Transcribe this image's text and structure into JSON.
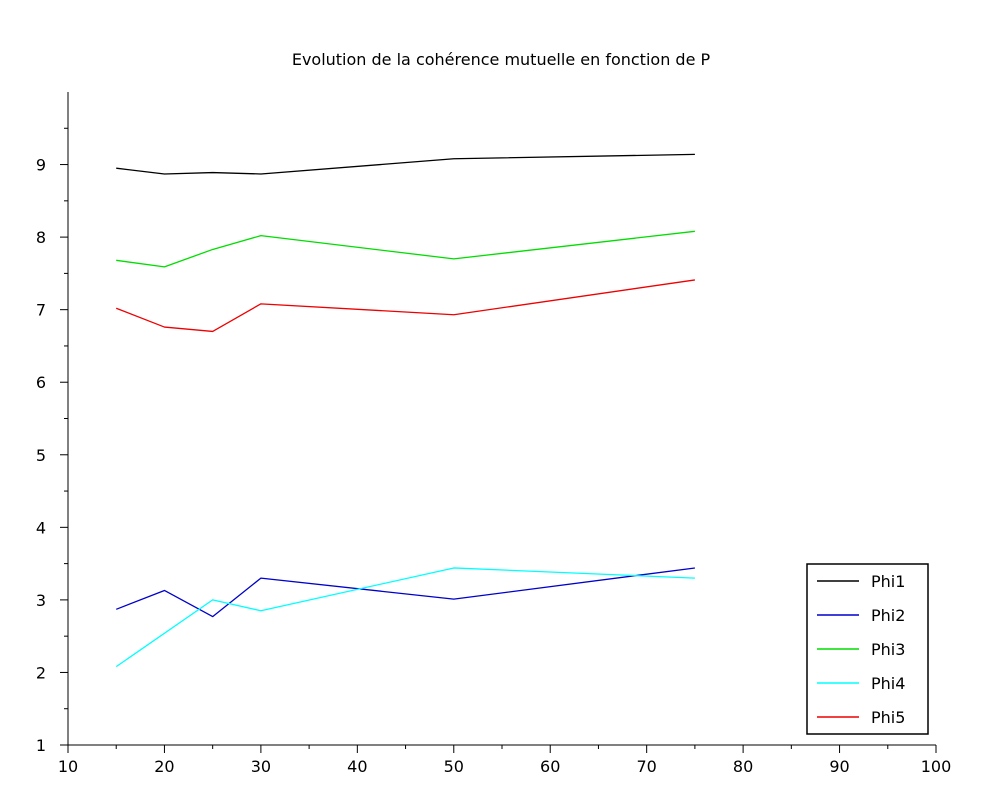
{
  "chart_data": {
    "type": "line",
    "title": "Evolution de la cohérence mutuelle en fonction de P",
    "xlabel": "",
    "ylabel": "",
    "xlim": [
      10,
      100
    ],
    "ylim": [
      1,
      10
    ],
    "x_ticks": [
      10,
      20,
      30,
      40,
      50,
      60,
      70,
      80,
      90,
      100
    ],
    "y_ticks": [
      1,
      2,
      3,
      4,
      5,
      6,
      7,
      8,
      9
    ],
    "grid": false,
    "legend_position": "bottom-right",
    "x": [
      15,
      20,
      25,
      30,
      50,
      75
    ],
    "series": [
      {
        "name": "Phi1",
        "color": "#000000",
        "values": [
          8.95,
          8.87,
          8.89,
          8.87,
          9.08,
          9.14
        ]
      },
      {
        "name": "Phi2",
        "color": "#0000cc",
        "values": [
          2.87,
          3.13,
          2.77,
          3.3,
          3.01,
          3.44
        ]
      },
      {
        "name": "Phi3",
        "color": "#00dd00",
        "values": [
          7.68,
          7.59,
          7.83,
          8.02,
          7.7,
          8.08
        ]
      },
      {
        "name": "Phi4",
        "color": "#00ffff",
        "values": [
          2.08,
          null,
          3.0,
          2.85,
          3.44,
          3.3
        ]
      },
      {
        "name": "Phi5",
        "color": "#ee0000",
        "values": [
          7.02,
          6.76,
          6.7,
          7.08,
          6.93,
          7.41
        ]
      }
    ]
  }
}
